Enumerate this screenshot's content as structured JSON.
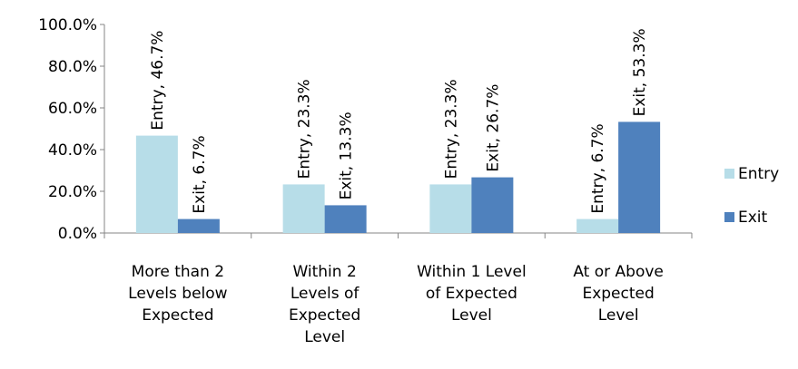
{
  "chart_data": {
    "type": "bar",
    "title": "",
    "xlabel": "",
    "ylabel": "",
    "ylim": [
      0,
      100
    ],
    "ytick_values": [
      0,
      20,
      40,
      60,
      80,
      100
    ],
    "ytick_labels": [
      "0.0%",
      "20.0%",
      "40.0%",
      "60.0%",
      "80.0%",
      "100.0%"
    ],
    "categories": [
      [
        "More than 2",
        "Levels below",
        "Expected"
      ],
      [
        "Within 2",
        "Levels of",
        "Expected",
        "Level"
      ],
      [
        "Within 1 Level",
        "of Expected",
        "Level"
      ],
      [
        "At or Above",
        "Expected",
        "Level"
      ]
    ],
    "series": [
      {
        "name": "Entry",
        "color": "#b7dde8",
        "values": [
          46.7,
          23.3,
          23.3,
          6.7
        ],
        "data_labels": [
          "Entry, 46.7%",
          "Entry, 23.3%",
          "Entry, 23.3%",
          "Entry, 6.7%"
        ]
      },
      {
        "name": "Exit",
        "color": "#4f81bd",
        "values": [
          6.7,
          13.3,
          26.7,
          53.3
        ],
        "data_labels": [
          "Exit, 6.7%",
          "Exit, 13.3%",
          "Exit, 26.7%",
          "Exit, 53.3%"
        ]
      }
    ],
    "grid": false,
    "legend_position": "right"
  }
}
